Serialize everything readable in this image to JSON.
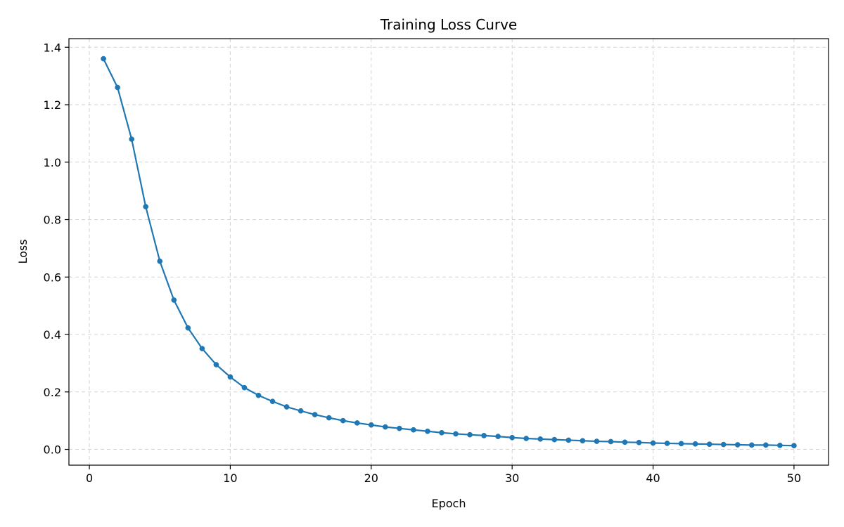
{
  "chart_data": {
    "type": "line",
    "title": "Training Loss Curve",
    "xlabel": "Epoch",
    "ylabel": "Loss",
    "xlim": [
      -1.45,
      52.45
    ],
    "ylim": [
      -0.055,
      1.43
    ],
    "xticks": [
      0,
      10,
      20,
      30,
      40,
      50
    ],
    "xtick_labels": [
      "0",
      "10",
      "20",
      "30",
      "40",
      "50"
    ],
    "yticks": [
      0.0,
      0.2,
      0.4,
      0.6,
      0.8,
      1.0,
      1.2,
      1.4
    ],
    "ytick_labels": [
      "0.0",
      "0.2",
      "0.4",
      "0.6",
      "0.8",
      "1.0",
      "1.2",
      "1.4"
    ],
    "grid": true,
    "grid_style": "dashed",
    "legend": false,
    "colors": {
      "line": "#1f77b4",
      "grid": "#d3d3d3"
    },
    "series": [
      {
        "x": [
          1,
          2,
          3,
          4,
          5,
          6,
          7,
          8,
          9,
          10,
          11,
          12,
          13,
          14,
          15,
          16,
          17,
          18,
          19,
          20,
          21,
          22,
          23,
          24,
          25,
          26,
          27,
          28,
          29,
          30,
          31,
          32,
          33,
          34,
          35,
          36,
          37,
          38,
          39,
          40,
          41,
          42,
          43,
          44,
          45,
          46,
          47,
          48,
          49,
          50
        ],
        "values": [
          1.36,
          1.26,
          1.08,
          0.845,
          0.655,
          0.52,
          0.423,
          0.351,
          0.295,
          0.252,
          0.215,
          0.188,
          0.167,
          0.148,
          0.134,
          0.121,
          0.11,
          0.1,
          0.092,
          0.085,
          0.078,
          0.073,
          0.068,
          0.063,
          0.058,
          0.054,
          0.051,
          0.048,
          0.045,
          0.041,
          0.038,
          0.036,
          0.034,
          0.032,
          0.03,
          0.028,
          0.027,
          0.025,
          0.024,
          0.022,
          0.021,
          0.02,
          0.019,
          0.018,
          0.017,
          0.016,
          0.015,
          0.015,
          0.014,
          0.013
        ]
      }
    ]
  }
}
